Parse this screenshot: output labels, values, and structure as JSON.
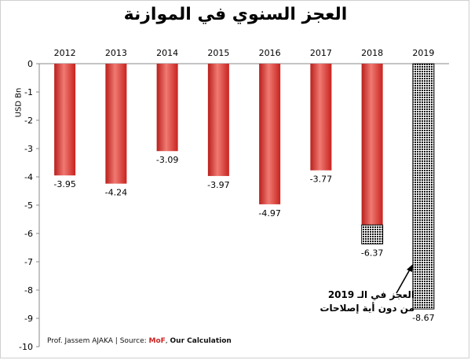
{
  "title": "العجز السنوي في الموازنة",
  "footer": {
    "author": "Prof. Jassem AJAKA | Source: ",
    "source": "MoF",
    "sep": ", ",
    "calc": "Our Calculation"
  },
  "annotation": {
    "line1": "العجز في الـ 2019",
    "line2": "من دون أية إصلاحات"
  },
  "colors": {
    "bar": "#d9302c",
    "bar_highlight": "#f07a72",
    "pattern": "#111111"
  },
  "chart_data": {
    "type": "bar",
    "categories": [
      "2012",
      "2013",
      "2014",
      "2015",
      "2016",
      "2017",
      "2018",
      "2019"
    ],
    "values": [
      -3.95,
      -4.24,
      -3.09,
      -3.97,
      -4.97,
      -3.77,
      -6.37,
      -8.67
    ],
    "value_labels": [
      "-3.95",
      "-4.24",
      "-3.09",
      "-3.97",
      "-4.97",
      "-3.77",
      "-6.37",
      "-8.67"
    ],
    "patterned_extra": [
      {
        "category": "2018",
        "from": -5.7,
        "to": -6.37
      },
      {
        "category": "2019",
        "from": 0,
        "to": -8.67
      }
    ],
    "title": "العجز السنوي في الموازنة",
    "xlabel": "",
    "ylabel": "USD Bn",
    "ylim": [
      -10,
      0
    ],
    "yticks": [
      "0",
      "-1",
      "-2",
      "-3",
      "-4",
      "-5",
      "-6",
      "-7",
      "-8",
      "-9",
      "-10"
    ],
    "x_axis_position": "top",
    "grid": false,
    "legend": "none"
  }
}
